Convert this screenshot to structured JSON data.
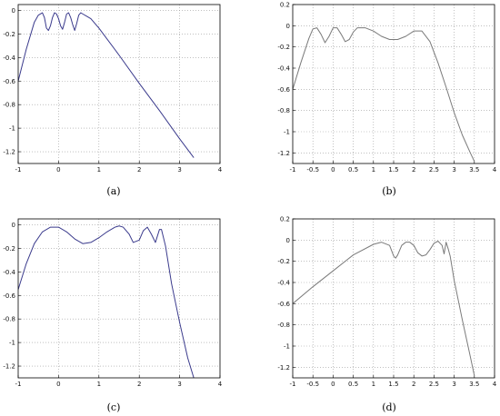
{
  "figure": {
    "captions": [
      "(a)",
      "(b)",
      "(c)",
      "(d)"
    ]
  },
  "chart_data": [
    {
      "type": "line",
      "panel_caption": "(a)",
      "xlim": [
        -1,
        4
      ],
      "ylim": [
        -1.3,
        0.05
      ],
      "xticks": [
        -1,
        0,
        1,
        2,
        3,
        4
      ],
      "yticks": [
        0,
        -0.2,
        -0.4,
        -0.6,
        -0.8,
        -1,
        -1.2
      ],
      "xtick_labels": [
        "-1",
        "0",
        "1",
        "2",
        "3",
        "4"
      ],
      "ytick_labels": [
        "0",
        "-0.2",
        "-0.4",
        "-0.6",
        "-0.8",
        "-1",
        "-1.2"
      ],
      "grid": true,
      "line_color": "#3a3a8c",
      "x": [
        -1,
        -0.8,
        -0.6,
        -0.5,
        -0.4,
        -0.35,
        -0.3,
        -0.25,
        -0.2,
        -0.15,
        -0.1,
        -0.05,
        0,
        0.05,
        0.1,
        0.15,
        0.2,
        0.25,
        0.3,
        0.35,
        0.4,
        0.45,
        0.5,
        0.55,
        0.6,
        0.7,
        0.8,
        1,
        1.5,
        2,
        2.5,
        3,
        3.35
      ],
      "y": [
        -0.6,
        -0.33,
        -0.1,
        -0.04,
        -0.02,
        -0.06,
        -0.15,
        -0.17,
        -0.13,
        -0.06,
        -0.02,
        -0.03,
        -0.07,
        -0.13,
        -0.16,
        -0.1,
        -0.03,
        -0.02,
        -0.06,
        -0.12,
        -0.17,
        -0.11,
        -0.04,
        -0.02,
        -0.03,
        -0.05,
        -0.07,
        -0.15,
        -0.38,
        -0.62,
        -0.85,
        -1.09,
        -1.25
      ]
    },
    {
      "type": "line",
      "panel_caption": "(b)",
      "xlim": [
        -1,
        4
      ],
      "ylim": [
        -1.3,
        0.2
      ],
      "xticks": [
        -1,
        -0.5,
        0,
        0.5,
        1,
        1.5,
        2,
        2.5,
        3,
        3.5,
        4
      ],
      "yticks": [
        0.2,
        0,
        -0.2,
        -0.4,
        -0.6,
        -0.8,
        -1,
        -1.2
      ],
      "xtick_labels": [
        "-1",
        "-0.5",
        "0",
        "0.5",
        "1",
        "1.5",
        "2",
        "2.5",
        "3",
        "3.5",
        "4"
      ],
      "ytick_labels": [
        "0.2",
        "0",
        "-0.2",
        "-0.4",
        "-0.6",
        "-0.8",
        "-1",
        "-1.2"
      ],
      "grid": true,
      "line_color": "#7a7a7a",
      "x": [
        -1,
        -0.8,
        -0.6,
        -0.5,
        -0.4,
        -0.3,
        -0.2,
        -0.1,
        0,
        0.1,
        0.2,
        0.3,
        0.4,
        0.5,
        0.6,
        0.8,
        1,
        1.2,
        1.4,
        1.6,
        1.8,
        2,
        2.2,
        2.4,
        2.6,
        2.8,
        3,
        3.2,
        3.4,
        3.5
      ],
      "y": [
        -0.6,
        -0.35,
        -0.12,
        -0.03,
        -0.02,
        -0.08,
        -0.16,
        -0.1,
        -0.02,
        -0.02,
        -0.08,
        -0.15,
        -0.13,
        -0.06,
        -0.02,
        -0.02,
        -0.05,
        -0.1,
        -0.13,
        -0.13,
        -0.1,
        -0.05,
        -0.05,
        -0.15,
        -0.35,
        -0.58,
        -0.82,
        -1.03,
        -1.2,
        -1.28
      ]
    },
    {
      "type": "line",
      "panel_caption": "(c)",
      "xlim": [
        -1,
        4
      ],
      "ylim": [
        -1.3,
        0.05
      ],
      "xticks": [
        -1,
        0,
        1,
        2,
        3,
        4
      ],
      "yticks": [
        0,
        -0.2,
        -0.4,
        -0.6,
        -0.8,
        -1,
        -1.2
      ],
      "xtick_labels": [
        "-1",
        "0",
        "1",
        "2",
        "3",
        "4"
      ],
      "ytick_labels": [
        "0",
        "-0.2",
        "-0.4",
        "-0.6",
        "-0.8",
        "-1",
        "-1.2"
      ],
      "grid": true,
      "line_color": "#3a3a8c",
      "x": [
        -1,
        -0.8,
        -0.6,
        -0.4,
        -0.2,
        0,
        0.2,
        0.4,
        0.6,
        0.8,
        1,
        1.2,
        1.4,
        1.5,
        1.6,
        1.75,
        1.85,
        2,
        2.1,
        2.2,
        2.3,
        2.4,
        2.5,
        2.55,
        2.65,
        2.8,
        3,
        3.2,
        3.35
      ],
      "y": [
        -0.55,
        -0.33,
        -0.16,
        -0.06,
        -0.02,
        -0.02,
        -0.06,
        -0.12,
        -0.16,
        -0.15,
        -0.11,
        -0.06,
        -0.02,
        -0.01,
        -0.02,
        -0.08,
        -0.15,
        -0.13,
        -0.05,
        -0.02,
        -0.08,
        -0.15,
        -0.04,
        -0.04,
        -0.18,
        -0.5,
        -0.83,
        -1.13,
        -1.3
      ]
    },
    {
      "type": "line",
      "panel_caption": "(d)",
      "xlim": [
        -1,
        4
      ],
      "ylim": [
        -1.3,
        0.2
      ],
      "xticks": [
        -1,
        -0.5,
        0,
        0.5,
        1,
        1.5,
        2,
        2.5,
        3,
        3.5,
        4
      ],
      "yticks": [
        0.2,
        0,
        -0.2,
        -0.4,
        -0.6,
        -0.8,
        -1,
        -1.2
      ],
      "xtick_labels": [
        "-1",
        "-0.5",
        "0",
        "0.5",
        "1",
        "1.5",
        "2",
        "2.5",
        "3",
        "3.5",
        "4"
      ],
      "ytick_labels": [
        "0.2",
        "0",
        "-0.2",
        "-0.4",
        "-0.6",
        "-0.8",
        "-1",
        "-1.2"
      ],
      "grid": true,
      "line_color": "#7a7a7a",
      "x": [
        -1,
        -0.5,
        0,
        0.5,
        1,
        1.2,
        1.4,
        1.5,
        1.55,
        1.6,
        1.7,
        1.8,
        1.9,
        2,
        2.1,
        2.2,
        2.3,
        2.4,
        2.5,
        2.6,
        2.7,
        2.75,
        2.8,
        2.85,
        2.9,
        3,
        3.2,
        3.4,
        3.5
      ],
      "y": [
        -0.6,
        -0.44,
        -0.29,
        -0.14,
        -0.04,
        -0.02,
        -0.05,
        -0.15,
        -0.17,
        -0.14,
        -0.05,
        -0.02,
        -0.02,
        -0.05,
        -0.12,
        -0.15,
        -0.14,
        -0.09,
        -0.03,
        -0.01,
        -0.05,
        -0.13,
        -0.02,
        -0.08,
        -0.15,
        -0.38,
        -0.75,
        -1.1,
        -1.28
      ]
    }
  ]
}
